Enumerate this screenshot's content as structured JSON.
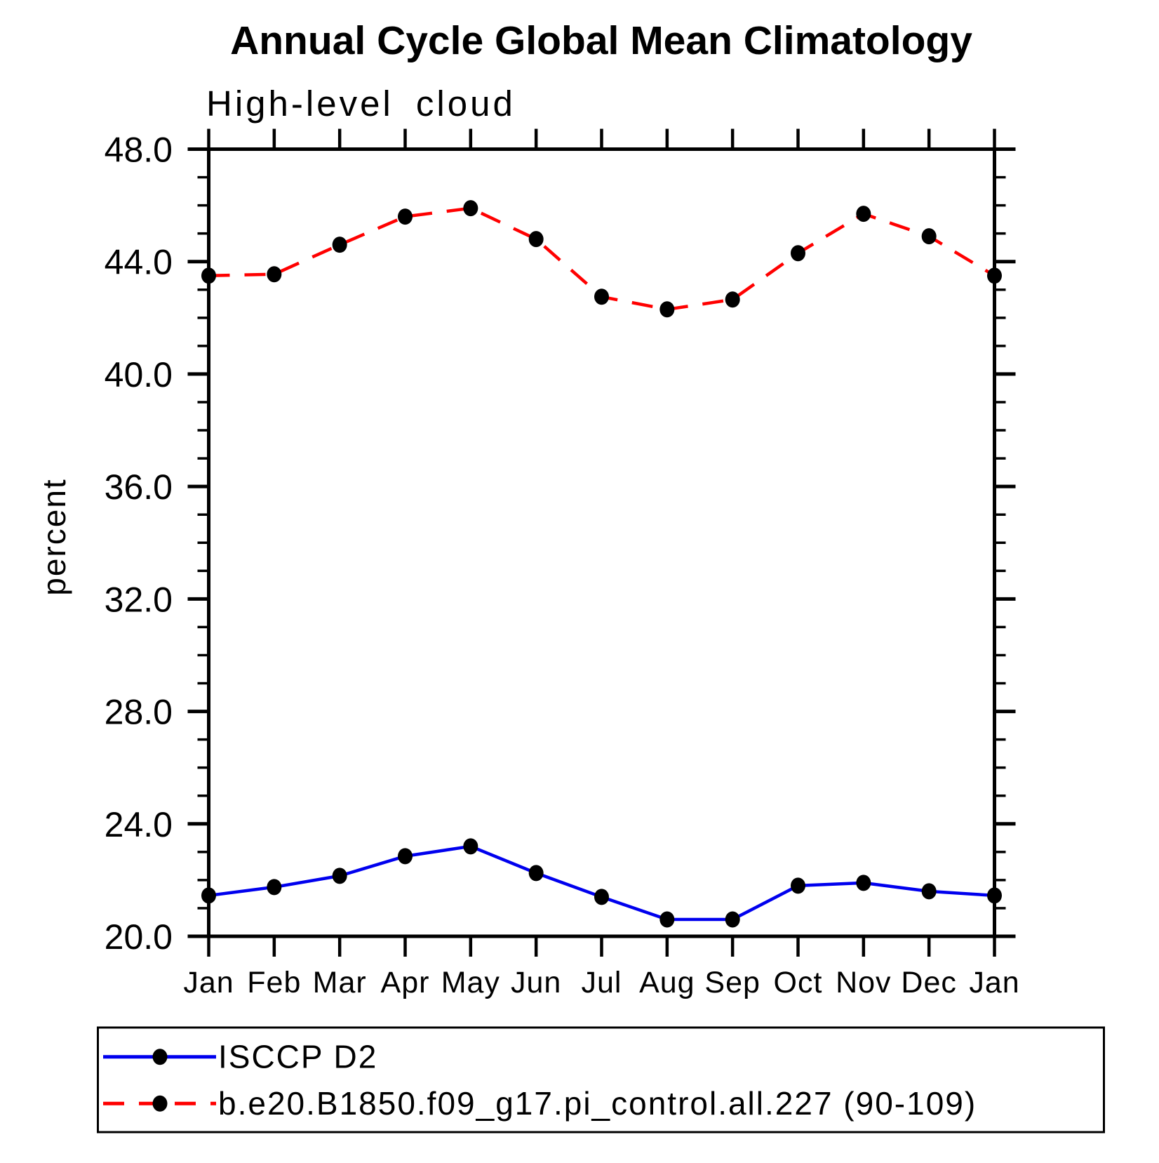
{
  "title": "Annual Cycle Global Mean Climatology",
  "subtitle": "High-level cloud",
  "chart_data": {
    "type": "line",
    "title": "Annual Cycle Global Mean Climatology",
    "subtitle": "High-level cloud",
    "xlabel": "",
    "ylabel": "percent",
    "x_tick_labels": [
      "Jan",
      "Feb",
      "Mar",
      "Apr",
      "May",
      "Jun",
      "Jul",
      "Aug",
      "Sep",
      "Oct",
      "Nov",
      "Dec",
      "Jan"
    ],
    "y_ticks": [
      20,
      24,
      28,
      32,
      36,
      40,
      44,
      48
    ],
    "y_tick_labels": [
      "20.0",
      "24.0",
      "28.0",
      "32.0",
      "36.0",
      "40.0",
      "44.0",
      "48.0"
    ],
    "ylim": [
      20.0,
      48.0
    ],
    "y_minor_step": 1.0,
    "grid": false,
    "legend_position": "bottom-left-box",
    "marker": "filled-circle",
    "marker_color": "#000000",
    "series": [
      {
        "name": "ISCCP D2",
        "color": "#0000ee",
        "style": "solid",
        "values": [
          21.45,
          21.75,
          22.15,
          22.85,
          23.2,
          22.25,
          21.4,
          20.6,
          20.6,
          21.8,
          21.9,
          21.6,
          21.45
        ]
      },
      {
        "name": "b.e20.B1850.f09_g17.pi_control.all.227 (90-109)",
        "color": "#ff0000",
        "style": "dashed",
        "values": [
          43.5,
          43.55,
          44.6,
          45.6,
          45.9,
          44.8,
          42.75,
          42.3,
          42.65,
          44.3,
          45.7,
          44.9,
          43.5
        ]
      }
    ]
  },
  "colors": {
    "background": "#ffffff",
    "axis": "#000000",
    "text": "#000000",
    "series_blue": "#0000ee",
    "series_red": "#ff0000"
  }
}
